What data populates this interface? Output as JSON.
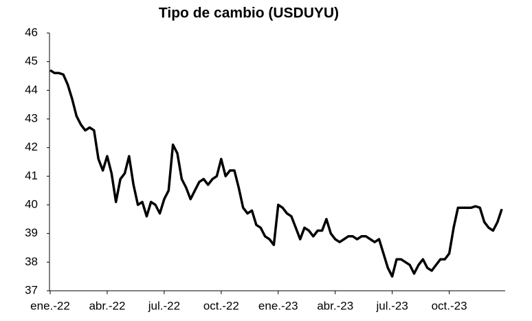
{
  "chart_data": {
    "type": "line",
    "title": "Tipo de cambio (USDUYU)",
    "categories": [
      "ene.-22",
      null,
      null,
      null,
      null,
      null,
      null,
      null,
      null,
      null,
      null,
      null,
      null,
      "abr.-22",
      null,
      null,
      null,
      null,
      null,
      null,
      null,
      null,
      null,
      null,
      null,
      null,
      "jul.-22",
      null,
      null,
      null,
      null,
      null,
      null,
      null,
      null,
      null,
      null,
      null,
      null,
      "oct.-22",
      null,
      null,
      null,
      null,
      null,
      null,
      null,
      null,
      null,
      null,
      null,
      null,
      "ene.-23",
      null,
      null,
      null,
      null,
      null,
      null,
      null,
      null,
      null,
      null,
      null,
      null,
      "abr.-23",
      null,
      null,
      null,
      null,
      null,
      null,
      null,
      null,
      null,
      null,
      null,
      null,
      "jul.-23",
      null,
      null,
      null,
      null,
      null,
      null,
      null,
      null,
      null,
      null,
      null,
      null,
      "oct.-23",
      null,
      null,
      null,
      null,
      null,
      null,
      null,
      null,
      null,
      null,
      null,
      null
    ],
    "values": [
      44.7,
      44.6,
      44.6,
      44.55,
      44.2,
      43.7,
      43.1,
      42.8,
      42.6,
      42.7,
      42.6,
      41.6,
      41.2,
      41.7,
      41.1,
      40.1,
      40.9,
      41.1,
      41.7,
      40.7,
      40.0,
      40.1,
      39.6,
      40.1,
      40.0,
      39.7,
      40.2,
      40.5,
      42.1,
      41.8,
      40.9,
      40.6,
      40.2,
      40.5,
      40.8,
      40.9,
      40.7,
      40.9,
      41.0,
      41.6,
      41.0,
      41.2,
      41.2,
      40.6,
      39.9,
      39.7,
      39.8,
      39.3,
      39.2,
      38.9,
      38.8,
      38.6,
      40.0,
      39.9,
      39.7,
      39.6,
      39.2,
      38.8,
      39.2,
      39.1,
      38.9,
      39.1,
      39.1,
      39.5,
      39.0,
      38.8,
      38.7,
      38.8,
      38.9,
      38.9,
      38.8,
      38.9,
      38.9,
      38.8,
      38.7,
      38.8,
      38.3,
      37.8,
      37.5,
      38.1,
      38.1,
      38.0,
      37.9,
      37.6,
      37.9,
      38.1,
      37.8,
      37.7,
      37.9,
      38.1,
      38.1,
      38.3,
      39.2,
      39.9,
      39.9,
      39.9,
      39.9,
      39.95,
      39.9,
      39.4,
      39.2,
      39.1,
      39.4,
      39.85
    ],
    "color": "#000000",
    "ylim": [
      37,
      46
    ],
    "yticks": [
      37,
      38,
      39,
      40,
      41,
      42,
      43,
      44,
      45,
      46
    ],
    "grid": false
  }
}
